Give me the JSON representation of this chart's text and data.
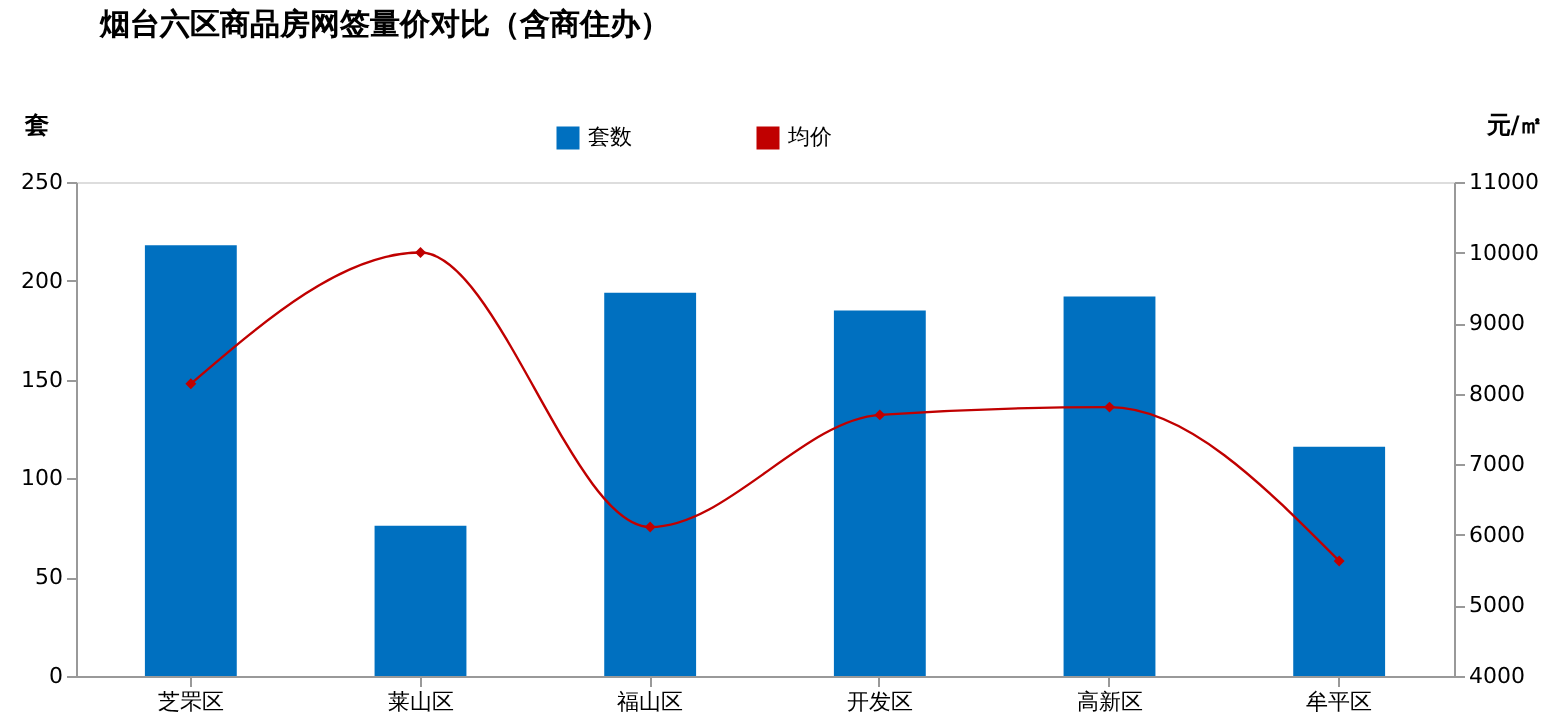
{
  "chart_data": {
    "type": "bar",
    "title": "烟台六区商品房网签量价对比（含商住办）",
    "ylabel": "套",
    "y2label": "元/㎡",
    "categories": [
      "芝罘区",
      "莱山区",
      "福山区",
      "开发区",
      "高新区",
      "牟平区"
    ],
    "series": [
      {
        "name": "套数",
        "color": "#0070c0",
        "values": [
          218,
          76,
          194,
          185,
          192,
          116
        ]
      },
      {
        "name": "均价",
        "type": "line",
        "axis": "y2",
        "color": "#c00000",
        "marker": "diamond",
        "values": [
          8140,
          10000,
          6110,
          7700,
          7810,
          5630
        ]
      }
    ],
    "ylim": [
      0,
      250
    ],
    "yticks": [
      0,
      50,
      100,
      150,
      200,
      250
    ],
    "y2lim": [
      4000,
      11000
    ],
    "y2ticks": [
      4000,
      5000,
      6000,
      7000,
      8000,
      9000,
      10000,
      11000
    ],
    "grid": false,
    "legend": "top"
  }
}
